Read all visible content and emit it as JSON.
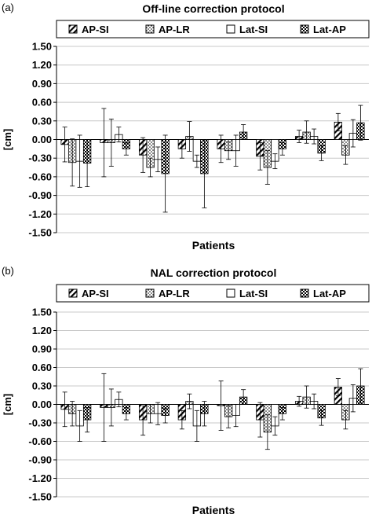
{
  "colors": {
    "ink": "#000000",
    "grid": "#c8c8c8",
    "background": "#ffffff"
  },
  "chart_data": [
    {
      "panel_label": "(a)",
      "type": "bar",
      "title": "Off-line correction protocol",
      "xlabel": "Patients",
      "ylabel": "[cm]",
      "ylim": [
        -1.5,
        1.5
      ],
      "yticks": [
        "1.50",
        "1.20",
        "0.90",
        "0.60",
        "0.30",
        "0.00",
        "-0.30",
        "-0.60",
        "-0.90",
        "-1.20",
        "-1.50"
      ],
      "grid": true,
      "legend_position": "top",
      "n_patients": 8,
      "series": [
        {
          "name": "AP-SI",
          "pattern": "diagonal",
          "values": [
            -0.08,
            -0.05,
            -0.25,
            -0.15,
            -0.15,
            -0.27,
            0.05,
            0.28
          ],
          "errors": [
            0.28,
            0.55,
            0.28,
            0.15,
            0.22,
            0.22,
            0.1,
            0.14
          ]
        },
        {
          "name": "AP-LR",
          "pattern": "dots",
          "values": [
            -0.37,
            -0.05,
            -0.45,
            0.05,
            -0.18,
            -0.45,
            0.12,
            -0.25
          ],
          "errors": [
            0.38,
            0.38,
            0.15,
            0.24,
            0.14,
            0.27,
            0.18,
            0.15
          ]
        },
        {
          "name": "Lat-SI",
          "pattern": "empty",
          "values": [
            -0.35,
            0.08,
            -0.32,
            -0.35,
            -0.18,
            -0.35,
            0.05,
            0.1
          ],
          "errors": [
            0.42,
            0.12,
            0.2,
            0.1,
            0.25,
            0.12,
            0.12,
            0.22
          ]
        },
        {
          "name": "Lat-AP",
          "pattern": "checker",
          "values": [
            -0.38,
            -0.15,
            -0.55,
            -0.55,
            0.12,
            -0.15,
            -0.22,
            0.27
          ],
          "errors": [
            0.38,
            0.1,
            0.62,
            0.55,
            0.12,
            0.1,
            0.12,
            0.28
          ]
        }
      ]
    },
    {
      "panel_label": "(b)",
      "type": "bar",
      "title": "NAL correction protocol",
      "xlabel": "Patients",
      "ylabel": "[cm]",
      "ylim": [
        -1.5,
        1.5
      ],
      "yticks": [
        "1.50",
        "1.20",
        "0.90",
        "0.60",
        "0.30",
        "0.00",
        "-0.30",
        "-0.60",
        "-0.90",
        "-1.20",
        "-1.50"
      ],
      "grid": true,
      "legend_position": "top",
      "n_patients": 8,
      "series": [
        {
          "name": "AP-SI",
          "pattern": "diagonal",
          "values": [
            -0.08,
            -0.05,
            -0.25,
            -0.25,
            -0.02,
            -0.25,
            0.05,
            0.28
          ],
          "errors": [
            0.28,
            0.55,
            0.25,
            0.15,
            0.4,
            0.28,
            0.08,
            0.14
          ]
        },
        {
          "name": "AP-LR",
          "pattern": "dots",
          "values": [
            -0.15,
            -0.05,
            -0.15,
            0.05,
            -0.2,
            -0.45,
            0.12,
            -0.25
          ],
          "errors": [
            0.2,
            0.3,
            0.15,
            0.12,
            0.18,
            0.28,
            0.18,
            0.15
          ]
        },
        {
          "name": "Lat-SI",
          "pattern": "empty",
          "values": [
            -0.35,
            0.08,
            -0.15,
            -0.35,
            -0.18,
            -0.35,
            0.05,
            0.1
          ],
          "errors": [
            0.25,
            0.12,
            0.18,
            0.25,
            0.18,
            0.15,
            0.12,
            0.22
          ]
        },
        {
          "name": "Lat-AP",
          "pattern": "checker",
          "values": [
            -0.25,
            -0.15,
            -0.18,
            -0.15,
            0.12,
            -0.15,
            -0.22,
            0.3
          ],
          "errors": [
            0.2,
            0.1,
            0.12,
            0.2,
            0.12,
            0.1,
            0.12,
            0.28
          ]
        }
      ]
    }
  ]
}
